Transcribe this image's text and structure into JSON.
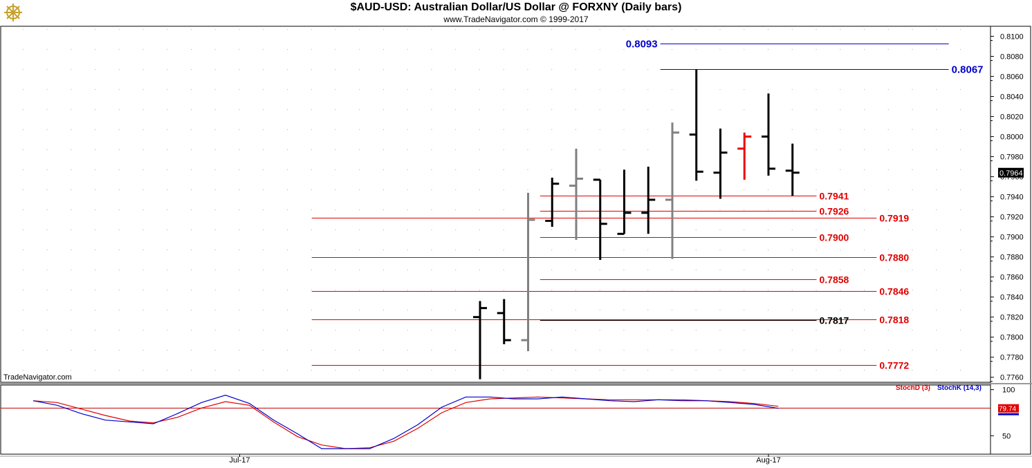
{
  "header": {
    "title": "$AUD-USD:  Australian Dollar/US Dollar @ FORXNY  (Daily bars)",
    "subtitle": "www.TradeNavigator.com © 1999-2017"
  },
  "watermark": "TradeNavigator.com",
  "colors": {
    "support": "#e00000",
    "resistance": "#0000cc",
    "bar_default": "#000000",
    "bar_gray": "#808080",
    "bar_red": "#ee0000",
    "stochK": "#0000cc",
    "stochD": "#e00000"
  },
  "chart_data": [
    {
      "type": "ohlc",
      "title": "$AUD-USD:  Australian Dollar/US Dollar @ FORXNY  (Daily bars)",
      "ylim": [
        0.7755,
        0.811
      ],
      "y_ticks": [
        "0.8100",
        "0.8080",
        "0.8060",
        "0.8040",
        "0.8020",
        "0.8000",
        "0.7980",
        "0.7960",
        "0.7940",
        "0.7920",
        "0.7900",
        "0.7880",
        "0.7860",
        "0.7840",
        "0.7820",
        "0.7800",
        "0.7780",
        "0.7760"
      ],
      "x_tick_labels": [
        {
          "label": "Jul-17",
          "bar": 9
        },
        {
          "label": "Aug-17",
          "bar": 31
        }
      ],
      "last_price": "0.7964",
      "bars": [
        {
          "i": 19,
          "open": 0.782,
          "high": 0.7836,
          "low": 0.7758,
          "close": 0.7829,
          "color": "black"
        },
        {
          "i": 20,
          "open": 0.7824,
          "high": 0.7838,
          "low": 0.7793,
          "close": 0.7797,
          "color": "black"
        },
        {
          "i": 21,
          "open": 0.7797,
          "high": 0.7944,
          "low": 0.7786,
          "close": 0.7917,
          "color": "gray"
        },
        {
          "i": 22,
          "open": 0.7916,
          "high": 0.7959,
          "low": 0.791,
          "close": 0.7953,
          "color": "black"
        },
        {
          "i": 23,
          "open": 0.7951,
          "high": 0.7988,
          "low": 0.7897,
          "close": 0.7958,
          "color": "gray"
        },
        {
          "i": 24,
          "open": 0.7957,
          "high": 0.7957,
          "low": 0.7877,
          "close": 0.7913,
          "color": "black"
        },
        {
          "i": 25,
          "open": 0.7903,
          "high": 0.7967,
          "low": 0.7903,
          "close": 0.7924,
          "color": "black"
        },
        {
          "i": 26,
          "open": 0.7924,
          "high": 0.797,
          "low": 0.7903,
          "close": 0.7937,
          "color": "black"
        },
        {
          "i": 27,
          "open": 0.7937,
          "high": 0.8014,
          "low": 0.7878,
          "close": 0.8004,
          "color": "gray"
        },
        {
          "i": 28,
          "open": 0.8002,
          "high": 0.8067,
          "low": 0.7956,
          "close": 0.7965,
          "color": "black"
        },
        {
          "i": 29,
          "open": 0.7964,
          "high": 0.8008,
          "low": 0.7938,
          "close": 0.7984,
          "color": "black"
        },
        {
          "i": 30,
          "open": 0.7988,
          "high": 0.8004,
          "low": 0.7957,
          "close": 0.8,
          "color": "red"
        },
        {
          "i": 31,
          "open": 0.8,
          "high": 0.8043,
          "low": 0.7961,
          "close": 0.7968,
          "color": "black"
        },
        {
          "i": 32,
          "open": 0.7966,
          "high": 0.7993,
          "low": 0.7941,
          "close": 0.7964,
          "color": "black"
        }
      ],
      "levels": [
        {
          "value": 0.8093,
          "label": "0.8093",
          "color": "blue",
          "from_bar": 26.5,
          "to_bar": 38.5,
          "label_side": "left"
        },
        {
          "value": 0.8067,
          "label": "0.8067",
          "color": "blue",
          "from_bar": 26.5,
          "to_bar": 38.5,
          "label_side": "right"
        },
        {
          "value": 0.7941,
          "label": "0.7941",
          "color": "red",
          "from_bar": 21.5,
          "to_bar": 33.0,
          "label_side": "right"
        },
        {
          "value": 0.7926,
          "label": "0.7926",
          "color": "red",
          "from_bar": 21.5,
          "to_bar": 33.0,
          "label_side": "right"
        },
        {
          "value": 0.7919,
          "label": "0.7919",
          "color": "red",
          "from_bar": 12.0,
          "to_bar": 35.5,
          "label_side": "right"
        },
        {
          "value": 0.79,
          "label": "0.7900",
          "color": "red",
          "from_bar": 21.5,
          "to_bar": 33.0,
          "label_side": "right"
        },
        {
          "value": 0.788,
          "label": "0.7880",
          "color": "red",
          "from_bar": 12.0,
          "to_bar": 35.5,
          "label_side": "right"
        },
        {
          "value": 0.7858,
          "label": "0.7858",
          "color": "red",
          "from_bar": 21.5,
          "to_bar": 33.0,
          "label_side": "right"
        },
        {
          "value": 0.7846,
          "label": "0.7846",
          "color": "red",
          "from_bar": 12.0,
          "to_bar": 35.5,
          "label_side": "right"
        },
        {
          "value": 0.7818,
          "label": "0.7818",
          "color": "red",
          "from_bar": 12.0,
          "to_bar": 35.5,
          "label_side": "right"
        },
        {
          "value": 0.7817,
          "label": "0.7817",
          "color": "black",
          "from_bar": 21.5,
          "to_bar": 33.0,
          "label_side": "right"
        },
        {
          "value": 0.7772,
          "label": "0.7772",
          "color": "red",
          "from_bar": 12.0,
          "to_bar": 35.5,
          "label_side": "right"
        }
      ]
    },
    {
      "type": "line",
      "ylim": [
        30,
        105
      ],
      "y_ticks": [
        "100",
        "50"
      ],
      "reference_line": 80,
      "last_value": "79.74",
      "x": [
        1,
        2,
        3,
        4,
        5,
        6,
        7,
        8,
        9,
        10,
        11,
        12,
        13,
        14,
        15,
        16,
        17,
        18,
        19,
        20,
        21,
        22,
        23,
        24,
        25,
        26,
        27,
        28,
        29,
        30,
        31,
        32
      ],
      "series": [
        {
          "name": "StochD (3)",
          "color": "red",
          "values": [
            88,
            86,
            79,
            72,
            66,
            64,
            70,
            80,
            87,
            83,
            65,
            49,
            40,
            36,
            37,
            44,
            58,
            75,
            86,
            90,
            91,
            92,
            91,
            90,
            89,
            89,
            89,
            89,
            88,
            87,
            85,
            82
          ]
        },
        {
          "name": "StochK (14,3)",
          "color": "blue",
          "values": [
            88,
            83,
            74,
            67,
            65,
            63,
            74,
            86,
            94,
            85,
            67,
            52,
            36,
            36,
            36,
            47,
            62,
            81,
            92,
            92,
            90,
            90,
            92,
            90,
            88,
            87,
            89,
            88,
            88,
            86,
            84,
            79.74
          ]
        }
      ]
    }
  ]
}
